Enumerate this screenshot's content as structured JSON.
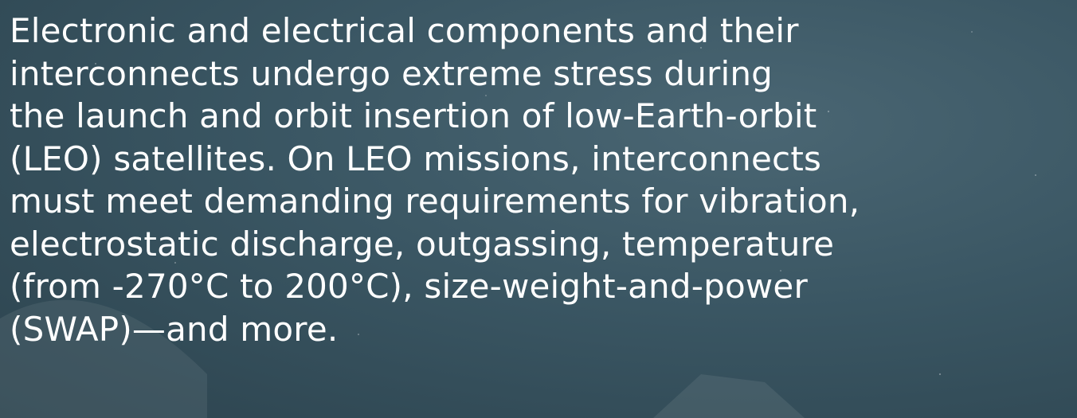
{
  "text": {
    "lines": [
      "Electronic and electrical components and their",
      "interconnects undergo extreme stress during",
      "the launch and orbit insertion of low-Earth-orbit",
      "(LEO) satellites. On LEO missions, interconnects",
      "must meet demanding requirements for vibration,",
      "electrostatic discharge, outgassing, temperature",
      "(from -270°C to 200°C), size-weight-and-power",
      "(SWAP)—and more."
    ]
  }
}
